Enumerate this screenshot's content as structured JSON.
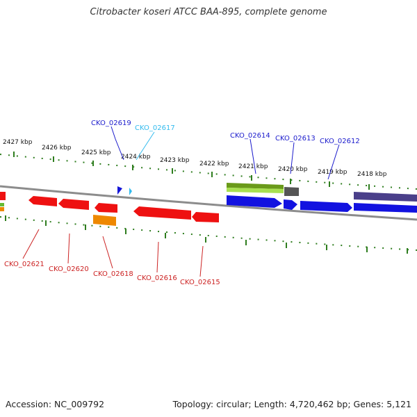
{
  "title": "Citrobacter koseri ATCC BAA-895, complete genome",
  "footer": {
    "accession": "Accession: NC_009792",
    "summary": "Topology: circular; Length: 4,720,462 bp; Genes: 5,121"
  },
  "colors": {
    "backbone": "#8c8c8c",
    "tick": "#2e7d1e",
    "forward_label": "#1a1acc",
    "forward_label_light": "#33bbee",
    "reverse_label": "#cc2222"
  },
  "scale_labels": [
    "2427 kbp",
    "2426 kbp",
    "2425 kbp",
    "2424 kbp",
    "2423 kbp",
    "2422 kbp",
    "2421 kbp",
    "2420 kbp",
    "2419 kbp",
    "2418 kbp"
  ],
  "forward_genes": [
    "CKO_02619",
    "CKO_02617",
    "CKO_02614",
    "CKO_02613",
    "CKO_02612"
  ],
  "reverse_genes": [
    "CKO_02621",
    "CKO_02620",
    "CKO_02618",
    "CKO_02616",
    "CKO_02615"
  ]
}
